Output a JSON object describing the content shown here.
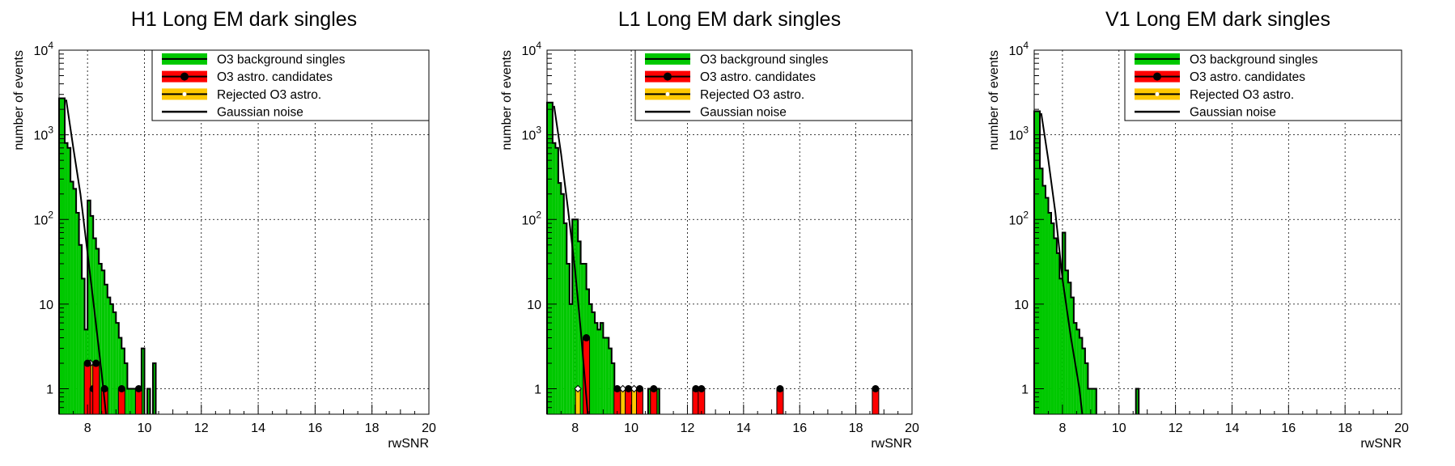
{
  "chart_data": [
    {
      "type": "histogram",
      "title": "H1 Long EM dark singles",
      "xlabel": "rwSNR",
      "ylabel": "number of events",
      "yscale": "log",
      "xlim": [
        7,
        20
      ],
      "ylim": [
        0.5,
        10000
      ],
      "grid": true,
      "legend_position": "top-right",
      "x_ticks": [
        "8",
        "10",
        "12",
        "14",
        "16",
        "18",
        "20"
      ],
      "y_ticks": [
        "1",
        "10",
        "10^2",
        "10^3",
        "10^4"
      ],
      "legend": [
        "O3 background singles",
        "O3 astro. candidates",
        "Rejected O3 astro.",
        "Gaussian noise"
      ],
      "background_singles": {
        "name": "O3 background singles",
        "bins": [
          [
            7.0,
            7.2,
            2700
          ],
          [
            7.2,
            7.3,
            800
          ],
          [
            7.3,
            7.4,
            700
          ],
          [
            7.4,
            7.5,
            280
          ],
          [
            7.5,
            7.6,
            230
          ],
          [
            7.6,
            7.7,
            120
          ],
          [
            7.7,
            7.8,
            50
          ],
          [
            7.8,
            7.9,
            20
          ],
          [
            7.9,
            8.0,
            5
          ],
          [
            8.0,
            8.1,
            168
          ],
          [
            8.1,
            8.2,
            110
          ],
          [
            8.2,
            8.3,
            60
          ],
          [
            8.3,
            8.4,
            45
          ],
          [
            8.4,
            8.5,
            30
          ],
          [
            8.5,
            8.6,
            25
          ],
          [
            8.6,
            8.7,
            17
          ],
          [
            8.7,
            8.8,
            12
          ],
          [
            8.8,
            8.9,
            10
          ],
          [
            8.9,
            9.0,
            8
          ],
          [
            9.0,
            9.1,
            6
          ],
          [
            9.1,
            9.2,
            4
          ],
          [
            9.2,
            9.3,
            3
          ],
          [
            9.3,
            9.4,
            2
          ],
          [
            9.4,
            9.5,
            1
          ],
          [
            9.5,
            9.6,
            1
          ],
          [
            9.6,
            9.7,
            1
          ],
          [
            9.7,
            9.8,
            1
          ],
          [
            9.9,
            10.0,
            3
          ],
          [
            10.1,
            10.2,
            1
          ],
          [
            10.3,
            10.4,
            2
          ]
        ]
      },
      "astro_candidates": {
        "name": "O3 astro. candidates",
        "points": [
          [
            8.0,
            2
          ],
          [
            8.2,
            1
          ],
          [
            8.3,
            2
          ],
          [
            8.6,
            1
          ],
          [
            9.2,
            1
          ],
          [
            9.8,
            1
          ]
        ]
      },
      "rejected_astro": {
        "name": "Rejected O3 astro.",
        "points": [
          [
            8.1,
            2
          ]
        ]
      },
      "gaussian_noise": {
        "name": "Gaussian noise",
        "points": [
          [
            7.25,
            2600
          ],
          [
            7.5,
            700
          ],
          [
            7.75,
            200
          ],
          [
            8.0,
            40
          ],
          [
            8.25,
            8
          ],
          [
            8.5,
            1.5
          ],
          [
            8.65,
            0.5
          ]
        ]
      }
    },
    {
      "type": "histogram",
      "title": "L1 Long EM dark singles",
      "xlabel": "rwSNR",
      "ylabel": "number of events",
      "yscale": "log",
      "xlim": [
        7,
        20
      ],
      "ylim": [
        0.5,
        10000
      ],
      "grid": true,
      "legend_position": "top-right",
      "x_ticks": [
        "8",
        "10",
        "12",
        "14",
        "16",
        "18",
        "20"
      ],
      "y_ticks": [
        "1",
        "10",
        "10^2",
        "10^3",
        "10^4"
      ],
      "legend": [
        "O3 background singles",
        "O3 astro. candidates",
        "Rejected O3 astro.",
        "Gaussian noise"
      ],
      "background_singles": {
        "name": "O3 background singles",
        "bins": [
          [
            7.0,
            7.2,
            2400
          ],
          [
            7.2,
            7.3,
            800
          ],
          [
            7.3,
            7.4,
            700
          ],
          [
            7.4,
            7.5,
            270
          ],
          [
            7.5,
            7.6,
            200
          ],
          [
            7.6,
            7.7,
            90
          ],
          [
            7.7,
            7.8,
            30
          ],
          [
            7.8,
            7.9,
            10
          ],
          [
            7.9,
            8.0,
            100
          ],
          [
            8.0,
            8.1,
            100
          ],
          [
            8.1,
            8.2,
            55
          ],
          [
            8.2,
            8.3,
            30
          ],
          [
            8.3,
            8.4,
            30
          ],
          [
            8.4,
            8.5,
            15
          ],
          [
            8.5,
            8.6,
            10
          ],
          [
            8.6,
            8.7,
            8
          ],
          [
            8.7,
            8.8,
            6
          ],
          [
            8.8,
            8.9,
            5
          ],
          [
            8.9,
            9.0,
            6
          ],
          [
            9.0,
            9.1,
            4
          ],
          [
            9.1,
            9.2,
            4
          ],
          [
            9.2,
            9.3,
            3
          ],
          [
            9.3,
            9.4,
            2
          ],
          [
            9.4,
            9.5,
            1
          ],
          [
            9.5,
            9.6,
            1
          ],
          [
            9.6,
            9.7,
            1
          ],
          [
            9.8,
            9.9,
            1
          ],
          [
            10.0,
            10.1,
            1
          ],
          [
            10.3,
            10.4,
            1
          ],
          [
            10.6,
            10.7,
            1
          ],
          [
            10.9,
            11.0,
            1
          ]
        ]
      },
      "astro_candidates": {
        "name": "O3 astro. candidates",
        "points": [
          [
            8.4,
            4
          ],
          [
            9.5,
            1
          ],
          [
            9.9,
            1
          ],
          [
            10.3,
            1
          ],
          [
            10.8,
            1
          ],
          [
            12.3,
            1
          ],
          [
            12.5,
            1
          ],
          [
            15.3,
            1
          ],
          [
            18.7,
            1
          ]
        ]
      },
      "rejected_astro": {
        "name": "Rejected O3 astro.",
        "points": [
          [
            8.1,
            1
          ],
          [
            9.7,
            1
          ],
          [
            10.1,
            1
          ]
        ]
      },
      "gaussian_noise": {
        "name": "Gaussian noise",
        "points": [
          [
            7.25,
            2200
          ],
          [
            7.5,
            600
          ],
          [
            7.75,
            130
          ],
          [
            8.0,
            25
          ],
          [
            8.2,
            5
          ],
          [
            8.45,
            0.5
          ]
        ]
      }
    },
    {
      "type": "histogram",
      "title": "V1 Long EM dark singles",
      "xlabel": "rwSNR",
      "ylabel": "number of events",
      "yscale": "log",
      "xlim": [
        7,
        20
      ],
      "ylim": [
        0.5,
        10000
      ],
      "grid": true,
      "legend_position": "top-right",
      "x_ticks": [
        "8",
        "10",
        "12",
        "14",
        "16",
        "18",
        "20"
      ],
      "y_ticks": [
        "1",
        "10",
        "10^2",
        "10^3",
        "10^4"
      ],
      "legend": [
        "O3 background singles",
        "O3 astro. candidates",
        "Rejected O3 astro.",
        "Gaussian noise"
      ],
      "background_singles": {
        "name": "O3 background singles",
        "bins": [
          [
            7.0,
            7.2,
            1900
          ],
          [
            7.2,
            7.3,
            400
          ],
          [
            7.3,
            7.4,
            250
          ],
          [
            7.4,
            7.5,
            180
          ],
          [
            7.5,
            7.6,
            120
          ],
          [
            7.6,
            7.7,
            90
          ],
          [
            7.7,
            7.8,
            60
          ],
          [
            7.8,
            7.9,
            40
          ],
          [
            7.9,
            8.0,
            20
          ],
          [
            8.0,
            8.1,
            70
          ],
          [
            8.1,
            8.2,
            25
          ],
          [
            8.2,
            8.3,
            18
          ],
          [
            8.3,
            8.4,
            12
          ],
          [
            8.4,
            8.5,
            6
          ],
          [
            8.5,
            8.6,
            5
          ],
          [
            8.6,
            8.7,
            4
          ],
          [
            8.7,
            8.8,
            3
          ],
          [
            8.8,
            8.9,
            2
          ],
          [
            8.9,
            9.0,
            1
          ],
          [
            9.0,
            9.1,
            1
          ],
          [
            9.1,
            9.2,
            1
          ],
          [
            10.6,
            10.7,
            1
          ]
        ]
      },
      "astro_candidates": {
        "name": "O3 astro. candidates",
        "points": []
      },
      "rejected_astro": {
        "name": "Rejected O3 astro.",
        "points": []
      },
      "gaussian_noise": {
        "name": "Gaussian noise",
        "points": [
          [
            7.25,
            1800
          ],
          [
            7.5,
            500
          ],
          [
            7.75,
            120
          ],
          [
            8.0,
            20
          ],
          [
            8.3,
            4
          ],
          [
            8.6,
            1
          ],
          [
            8.7,
            0.5
          ]
        ]
      }
    }
  ]
}
